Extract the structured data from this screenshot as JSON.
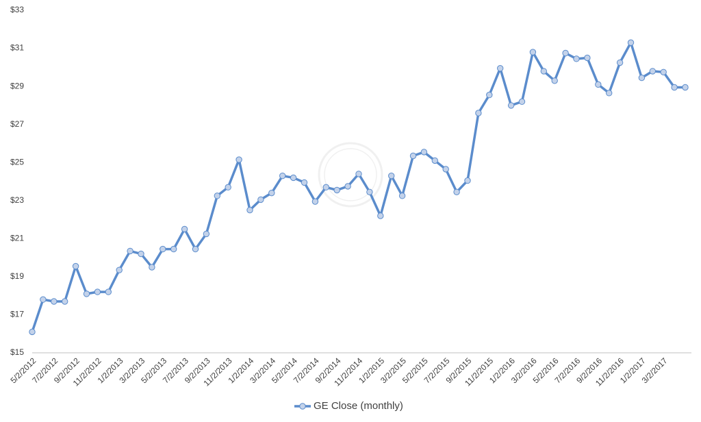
{
  "chart_data": {
    "type": "line",
    "categories": [
      "5/2/2012",
      null,
      "7/2/2012",
      null,
      "9/2/2012",
      null,
      "11/2/2012",
      null,
      "1/2/2013",
      null,
      "3/2/2013",
      null,
      "5/2/2013",
      null,
      "7/2/2013",
      null,
      "9/2/2013",
      null,
      "11/2/2013",
      null,
      "1/2/2014",
      null,
      "3/2/2014",
      null,
      "5/2/2014",
      null,
      "7/2/2014",
      null,
      "9/2/2014",
      null,
      "11/2/2014",
      null,
      "1/2/2015",
      null,
      "3/2/2015",
      null,
      "5/2/2015",
      null,
      "7/2/2015",
      null,
      "9/2/2015",
      null,
      "11/2/2015",
      null,
      "1/2/2016",
      null,
      "3/2/2016",
      null,
      "5/2/2016",
      null,
      "7/2/2016",
      null,
      "9/2/2016",
      null,
      "11/2/2016",
      null,
      "1/2/2017",
      null,
      "3/2/2017",
      null,
      null
    ],
    "series": [
      {
        "name": "GE Close (monthly)",
        "color": "#5b8ccc",
        "marker_color": "#c3d2ea",
        "values": [
          16.1,
          17.8,
          17.7,
          17.7,
          19.55,
          18.1,
          18.2,
          18.2,
          19.35,
          20.35,
          20.2,
          19.5,
          20.45,
          20.45,
          21.5,
          20.45,
          21.25,
          23.25,
          23.7,
          25.15,
          22.5,
          23.05,
          23.4,
          24.3,
          24.2,
          23.95,
          22.95,
          23.7,
          23.55,
          23.75,
          24.4,
          23.45,
          22.2,
          24.3,
          23.25,
          25.35,
          25.55,
          25.1,
          24.65,
          23.45,
          24.05,
          27.6,
          28.55,
          29.95,
          28.0,
          28.2,
          30.8,
          29.8,
          29.3,
          30.75,
          30.45,
          30.5,
          29.1,
          28.65,
          30.25,
          31.3,
          29.45,
          29.8,
          29.75,
          28.95,
          28.95
        ]
      }
    ],
    "ylim": [
      15,
      33
    ],
    "yticks": [
      {
        "value": 15,
        "label": "$15"
      },
      {
        "value": 17,
        "label": "$17"
      },
      {
        "value": 19,
        "label": "$19"
      },
      {
        "value": 21,
        "label": "$21"
      },
      {
        "value": 23,
        "label": "$23"
      },
      {
        "value": 25,
        "label": "$25"
      },
      {
        "value": 27,
        "label": "$27"
      },
      {
        "value": 29,
        "label": "$29"
      },
      {
        "value": 31,
        "label": "$31"
      },
      {
        "value": 33,
        "label": "$33"
      }
    ],
    "grid": false,
    "legend": "bottom"
  }
}
